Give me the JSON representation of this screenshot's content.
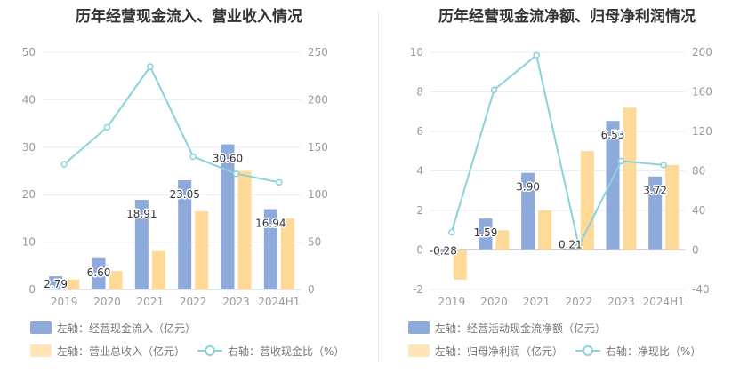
{
  "charts": [
    {
      "title": "历年经营现金流入、营业收入情况",
      "legend": [
        {
          "label": "左轴：经营现金流入（亿元）",
          "color": "#8eaadb"
        },
        {
          "label": "左轴：营业总收入（亿元）",
          "color": "#ffd998"
        },
        {
          "label": "右轴：营收现金比（%）",
          "color": "#8ad2dc"
        }
      ]
    },
    {
      "title": "历年经营现金流净额、归母净利润情况",
      "legend": [
        {
          "label": "左轴：经营活动现金流净额（亿元）",
          "color": "#8eaadb"
        },
        {
          "label": "左轴：归母净利润（亿元）",
          "color": "#ffd998"
        },
        {
          "label": "右轴：净现比（%）",
          "color": "#8ad2dc"
        }
      ]
    }
  ],
  "chart_data": [
    {
      "type": "bar",
      "title": "历年经营现金流入、营业收入情况",
      "categories": [
        "2019",
        "2020",
        "2021",
        "2022",
        "2023",
        "2024H1"
      ],
      "series": [
        {
          "name": "左轴：经营现金流入（亿元）",
          "axis": "left",
          "type": "bar",
          "color": "#8eaadb",
          "values": [
            2.79,
            6.6,
            18.91,
            23.05,
            30.6,
            16.94
          ],
          "labels": [
            "2.79",
            "6.60",
            "18.91",
            "23.05",
            "30.60",
            "16.94"
          ]
        },
        {
          "name": "左轴：营业总收入（亿元）",
          "axis": "left",
          "type": "bar",
          "color": "#ffd998",
          "values": [
            2.1,
            3.9,
            8.1,
            16.5,
            25.0,
            15.0
          ]
        },
        {
          "name": "右轴：营收现金比（%）",
          "axis": "right",
          "type": "line",
          "color": "#8ad2dc",
          "values": [
            132,
            171,
            235,
            140,
            122,
            113
          ]
        }
      ],
      "left_axis": {
        "min": 0,
        "max": 50,
        "ticks": [
          "0",
          "10",
          "20",
          "30",
          "40",
          "50"
        ]
      },
      "right_axis": {
        "min": 0,
        "max": 250,
        "ticks": [
          "0",
          "50",
          "100",
          "150",
          "200",
          "250"
        ]
      },
      "grid": true,
      "legend_position": "bottom"
    },
    {
      "type": "bar",
      "title": "历年经营现金流净额、归母净利润情况",
      "categories": [
        "2019",
        "2020",
        "2021",
        "2022",
        "2023",
        "2024H1"
      ],
      "series": [
        {
          "name": "左轴：经营活动现金流净额（亿元）",
          "axis": "left",
          "type": "bar",
          "color": "#8eaadb",
          "values": [
            -0.28,
            1.59,
            3.9,
            0.21,
            6.53,
            3.72
          ],
          "labels": [
            "-0.28",
            "1.59",
            "3.90",
            "0.21",
            "6.53",
            "3.72"
          ]
        },
        {
          "name": "左轴：归母净利润（亿元）",
          "axis": "left",
          "type": "bar",
          "color": "#ffd998",
          "values": [
            -1.5,
            1.0,
            2.0,
            5.0,
            7.2,
            4.3
          ]
        },
        {
          "name": "右轴：净现比（%）",
          "axis": "right",
          "type": "line",
          "color": "#8ad2dc",
          "values": [
            18,
            162,
            197,
            4,
            90,
            86
          ]
        }
      ],
      "left_axis": {
        "min": -2,
        "max": 10,
        "ticks": [
          "-2",
          "0",
          "2",
          "4",
          "6",
          "8",
          "10"
        ]
      },
      "right_axis": {
        "min": -40,
        "max": 200,
        "ticks": [
          "-40",
          "0",
          "40",
          "80",
          "120",
          "160",
          "200"
        ]
      },
      "grid": true,
      "legend_position": "bottom"
    }
  ]
}
